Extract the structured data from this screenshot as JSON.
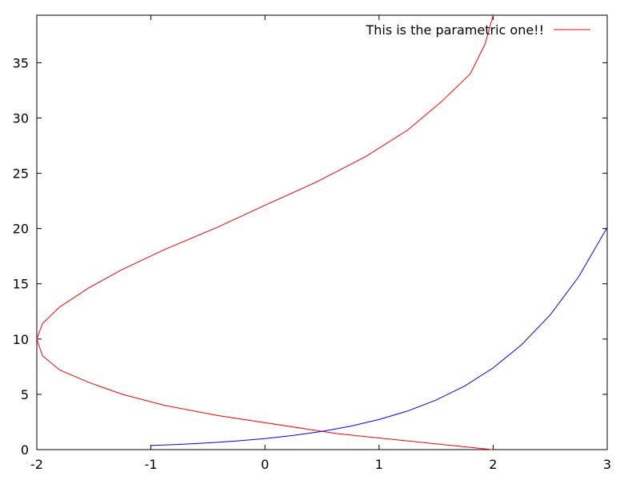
{
  "chart_data": {
    "type": "line",
    "title": "",
    "xlabel": "",
    "ylabel": "",
    "xlim": [
      -2,
      3
    ],
    "ylim": [
      0,
      39.3
    ],
    "x_ticks": [
      -2,
      -1,
      0,
      1,
      2,
      3
    ],
    "x_tick_labels": [
      "-2",
      "-1",
      "0",
      "1",
      "2",
      "3"
    ],
    "y_ticks": [
      0,
      5,
      10,
      15,
      20,
      25,
      30,
      35
    ],
    "y_tick_labels": [
      "0",
      "5",
      "10",
      "15",
      "20",
      "25",
      "30",
      "35"
    ],
    "grid": false,
    "legend": {
      "placement": "top-right"
    },
    "series": [
      {
        "name": "This is the parametric one!!",
        "color": "#ff0000",
        "points": [
          [
            1.99,
            0
          ],
          [
            0.63,
            1.45
          ],
          [
            -0.42,
            3.1
          ],
          [
            -0.88,
            4.0
          ],
          [
            -1.25,
            5.0
          ],
          [
            -1.55,
            6.1
          ],
          [
            -1.8,
            7.2
          ],
          [
            -1.95,
            8.5
          ],
          [
            -2.0,
            10.0
          ],
          [
            -1.95,
            11.4
          ],
          [
            -1.8,
            12.9
          ],
          [
            -1.55,
            14.6
          ],
          [
            -1.25,
            16.3
          ],
          [
            -0.88,
            18.1
          ],
          [
            -0.42,
            20.1
          ],
          [
            0.0,
            22.1
          ],
          [
            0.45,
            24.2
          ],
          [
            0.88,
            26.5
          ],
          [
            1.25,
            28.9
          ],
          [
            1.55,
            31.5
          ],
          [
            1.8,
            34.0
          ],
          [
            1.93,
            36.7
          ],
          [
            2.0,
            39.3
          ]
        ]
      },
      {
        "name": "",
        "color": "#0000ff",
        "points": [
          [
            -1.0,
            0.37
          ],
          [
            -0.75,
            0.47
          ],
          [
            -0.5,
            0.61
          ],
          [
            -0.25,
            0.78
          ],
          [
            0.0,
            1.0
          ],
          [
            0.25,
            1.28
          ],
          [
            0.5,
            1.65
          ],
          [
            0.75,
            2.12
          ],
          [
            1.0,
            2.72
          ],
          [
            1.25,
            3.49
          ],
          [
            1.5,
            4.48
          ],
          [
            1.75,
            5.75
          ],
          [
            2.0,
            7.39
          ],
          [
            2.25,
            9.49
          ],
          [
            2.5,
            12.18
          ],
          [
            2.75,
            15.64
          ],
          [
            3.0,
            20.09
          ]
        ]
      }
    ]
  }
}
